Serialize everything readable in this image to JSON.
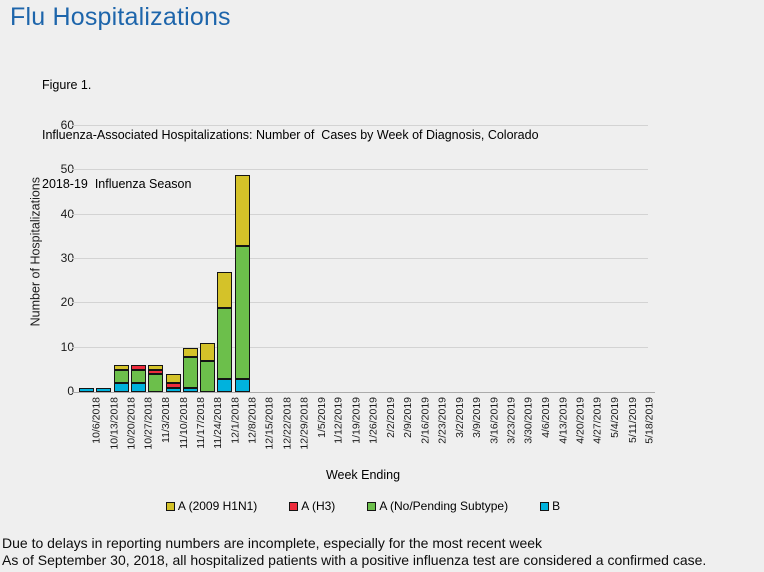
{
  "header": {
    "title": "Flu Hospitalizations"
  },
  "figure": {
    "caption_line1": "Figure 1.",
    "caption_line2": "Influenza-Associated Hospitalizations: Number of  Cases by Week of Diagnosis, Colorado",
    "caption_line3": "2018-19  Influenza Season"
  },
  "chart_data": {
    "type": "bar",
    "stacked": true,
    "xlabel": "Week Ending",
    "ylabel": "Number of Hospitalizations",
    "ylim": [
      0,
      60
    ],
    "ytick_step": 10,
    "grid": true,
    "legend_position": "bottom",
    "categories": [
      "10/6/2018",
      "10/13/2018",
      "10/20/2018",
      "10/27/2018",
      "11/3/2018",
      "11/10/2018",
      "11/17/2018",
      "11/24/2018",
      "12/1/2018",
      "12/8/2018",
      "12/15/2018",
      "12/22/2018",
      "12/29/2018",
      "1/5/2019",
      "1/12/2019",
      "1/19/2019",
      "1/26/2019",
      "2/2/2019",
      "2/9/2019",
      "2/16/2019",
      "2/23/2019",
      "3/2/2019",
      "3/9/2019",
      "3/16/2019",
      "3/23/2019",
      "3/30/2019",
      "4/6/2019",
      "4/13/2019",
      "4/20/2019",
      "4/27/2019",
      "5/4/2019",
      "5/11/2019",
      "5/18/2019"
    ],
    "series": [
      {
        "name": "B",
        "color": "#00b2dd",
        "values": [
          1,
          1,
          2,
          2,
          0,
          1,
          1,
          0,
          3,
          3,
          0,
          0,
          0,
          0,
          0,
          0,
          0,
          0,
          0,
          0,
          0,
          0,
          0,
          0,
          0,
          0,
          0,
          0,
          0,
          0,
          0,
          0,
          0
        ]
      },
      {
        "name": "A (No/Pending Subtype)",
        "color": "#6cbf4b",
        "values": [
          0,
          0,
          3,
          3,
          4,
          0,
          7,
          7,
          16,
          30,
          0,
          0,
          0,
          0,
          0,
          0,
          0,
          0,
          0,
          0,
          0,
          0,
          0,
          0,
          0,
          0,
          0,
          0,
          0,
          0,
          0,
          0,
          0
        ]
      },
      {
        "name": "A (H3)",
        "color": "#ee2c3c",
        "values": [
          0,
          0,
          0,
          1,
          1,
          1,
          0,
          0,
          0,
          0,
          0,
          0,
          0,
          0,
          0,
          0,
          0,
          0,
          0,
          0,
          0,
          0,
          0,
          0,
          0,
          0,
          0,
          0,
          0,
          0,
          0,
          0,
          0
        ]
      },
      {
        "name": "A (2009 H1N1)",
        "color": "#d4c229",
        "values": [
          0,
          0,
          1,
          0,
          1,
          2,
          2,
          4,
          8,
          16,
          0,
          0,
          0,
          0,
          0,
          0,
          0,
          0,
          0,
          0,
          0,
          0,
          0,
          0,
          0,
          0,
          0,
          0,
          0,
          0,
          0,
          0,
          0
        ]
      }
    ],
    "weekly_totals": [
      1,
      1,
      6,
      6,
      6,
      4,
      10,
      11,
      27,
      49,
      0,
      0,
      0,
      0,
      0,
      0,
      0,
      0,
      0,
      0,
      0,
      0,
      0,
      0,
      0,
      0,
      0,
      0,
      0,
      0,
      0,
      0,
      0
    ],
    "legend": [
      {
        "label": "A (2009 H1N1)",
        "color": "#d4c229"
      },
      {
        "label": "A (H3)",
        "color": "#ee2c3c"
      },
      {
        "label": "A (No/Pending Subtype)",
        "color": "#6cbf4b"
      },
      {
        "label": "B",
        "color": "#00b2dd"
      }
    ]
  },
  "footer": {
    "line1": "Due to delays in reporting numbers are incomplete, especially for the most recent week",
    "line2": "As of September 30, 2018, all hospitalized patients with a positive influenza test are considered a confirmed case."
  }
}
